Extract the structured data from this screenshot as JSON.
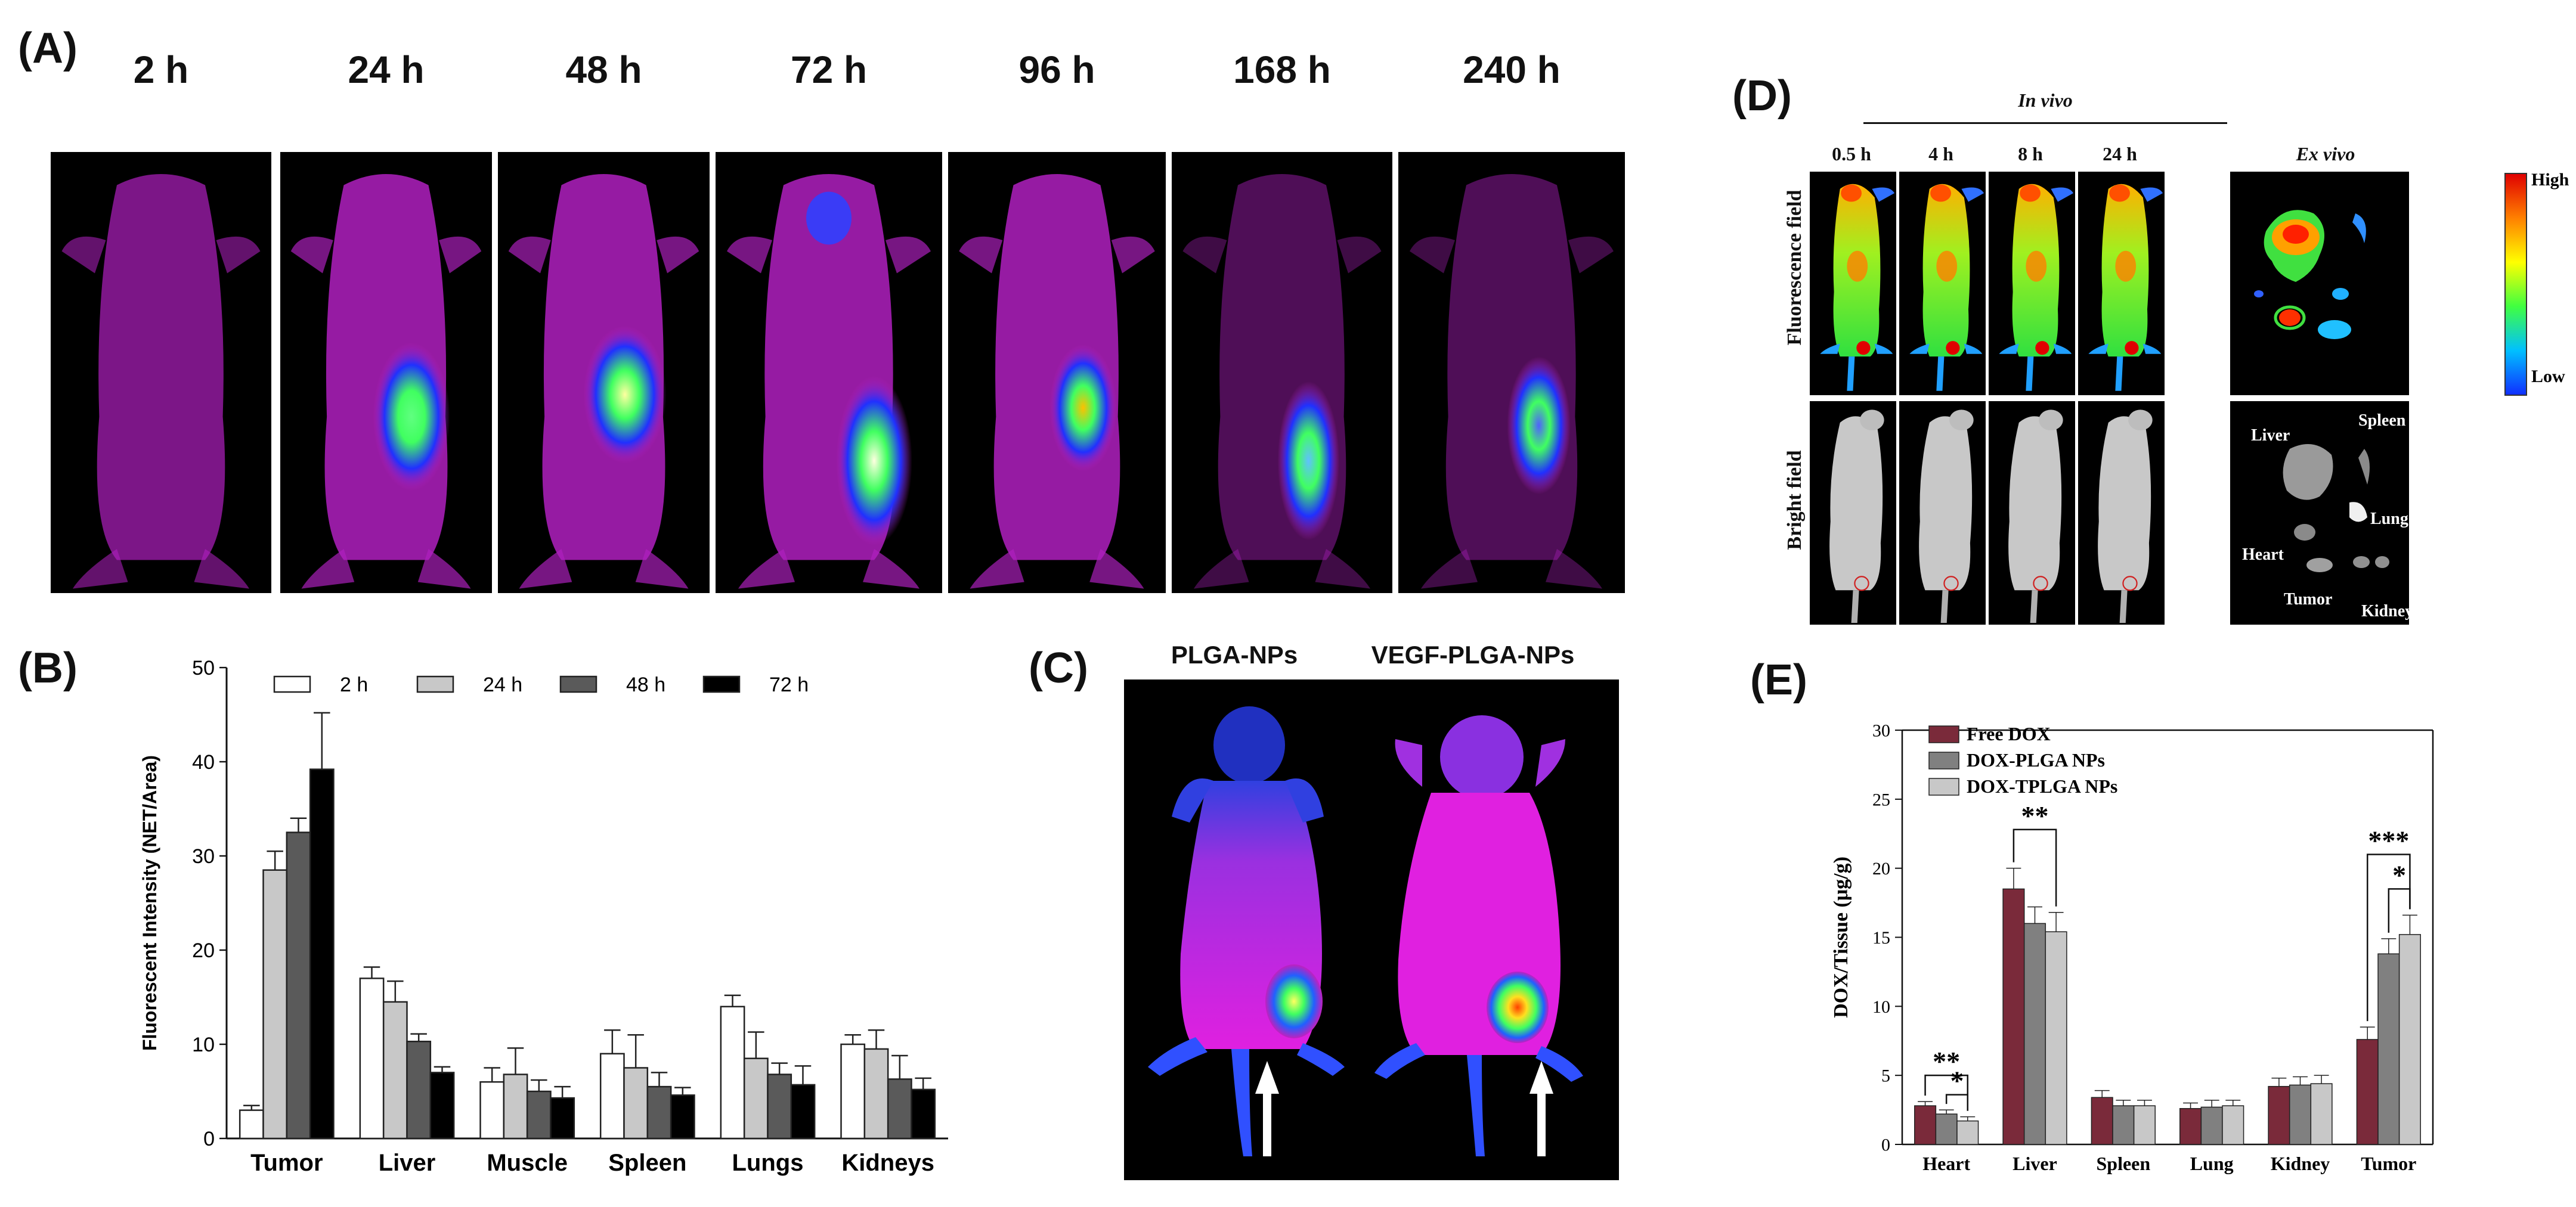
{
  "panels": {
    "A": {
      "label": "(A)",
      "times": [
        "2 h",
        "24 h",
        "48 h",
        "72 h",
        "96 h",
        "168 h",
        "240 h"
      ]
    },
    "B": {
      "label": "(B)"
    },
    "C": {
      "label": "(C)",
      "groups": [
        "PLGA-NPs",
        "VEGF-PLGA-NPs"
      ]
    },
    "D": {
      "label": "(D)",
      "in_vivo": "In vivo",
      "ex_vivo": "Ex vivo",
      "times": [
        "0.5 h",
        "4 h",
        "8 h",
        "24 h"
      ],
      "rows": [
        "Fluorescence field",
        "Bright field"
      ],
      "scale_high": "High",
      "scale_low": "Low",
      "organs": [
        "Liver",
        "Spleen",
        "Lung",
        "Heart",
        "Tumor",
        "Kidney"
      ]
    },
    "E": {
      "label": "(E)"
    }
  },
  "colors": {
    "fluor_magenta": "#c020c0",
    "fluor_blue": "#2030ff",
    "fluor_green": "#40ff60",
    "bar_white": "#ffffff",
    "bar_light": "#c8c8c8",
    "bar_dark": "#5a5a5a",
    "bar_black": "#000000",
    "e_free": "#7a2a3a",
    "e_plga": "#808080",
    "e_tplga": "#c8c8c8"
  },
  "chart_data": [
    {
      "id": "B",
      "type": "bar",
      "ylabel": "Fluorescent Intensity (NET/Area)",
      "xlabel": "",
      "ylim": [
        0,
        50
      ],
      "yticks": [
        0,
        10,
        20,
        30,
        40,
        50
      ],
      "categories": [
        "Tumor",
        "Liver",
        "Muscle",
        "Spleen",
        "Lungs",
        "Kidneys"
      ],
      "legend_position": "top",
      "series": [
        {
          "name": "2 h",
          "color": "#ffffff",
          "values": [
            3,
            17,
            6,
            9,
            14,
            10
          ],
          "errors": [
            0.5,
            1.2,
            1.5,
            2.5,
            1.2,
            1.0
          ]
        },
        {
          "name": "24 h",
          "color": "#c8c8c8",
          "values": [
            28.5,
            14.5,
            6.8,
            7.5,
            8.5,
            9.5
          ],
          "errors": [
            2.0,
            2.2,
            2.8,
            3.5,
            2.8,
            2.0
          ]
        },
        {
          "name": "48 h",
          "color": "#5a5a5a",
          "values": [
            32.5,
            10.3,
            5.0,
            5.5,
            6.8,
            6.3
          ],
          "errors": [
            1.5,
            0.8,
            1.2,
            1.5,
            1.2,
            2.5
          ]
        },
        {
          "name": "72 h",
          "color": "#000000",
          "values": [
            39.2,
            7.0,
            4.3,
            4.6,
            5.7,
            5.2
          ],
          "errors": [
            6.0,
            0.6,
            1.2,
            0.8,
            2.0,
            1.2
          ]
        }
      ]
    },
    {
      "id": "E",
      "type": "bar",
      "ylabel": "DOX/Tissue (μg/g)",
      "xlabel": "",
      "ylim": [
        0,
        30
      ],
      "yticks": [
        0,
        5,
        10,
        15,
        20,
        25,
        30
      ],
      "categories": [
        "Heart",
        "Liver",
        "Spleen",
        "Lung",
        "Kidney",
        "Tumor"
      ],
      "legend_position": "top-left",
      "series": [
        {
          "name": "Free DOX",
          "color": "#7a2a3a",
          "values": [
            2.8,
            18.5,
            3.4,
            2.6,
            4.2,
            7.6
          ],
          "errors": [
            0.3,
            1.5,
            0.5,
            0.4,
            0.6,
            0.9
          ]
        },
        {
          "name": "DOX-PLGA NPs",
          "color": "#808080",
          "values": [
            2.2,
            16.0,
            2.8,
            2.7,
            4.3,
            13.8
          ],
          "errors": [
            0.3,
            1.2,
            0.4,
            0.5,
            0.6,
            1.1
          ]
        },
        {
          "name": "DOX-TPLGA NPs",
          "color": "#c8c8c8",
          "values": [
            1.7,
            15.4,
            2.8,
            2.8,
            4.4,
            15.2
          ],
          "errors": [
            0.3,
            1.4,
            0.4,
            0.4,
            0.6,
            1.4
          ]
        }
      ],
      "annotations": [
        {
          "text": "**",
          "category": "Heart"
        },
        {
          "text": "*",
          "category": "Heart"
        },
        {
          "text": "**",
          "category": "Liver"
        },
        {
          "text": "***",
          "category": "Tumor"
        },
        {
          "text": "*",
          "category": "Tumor"
        }
      ]
    }
  ]
}
